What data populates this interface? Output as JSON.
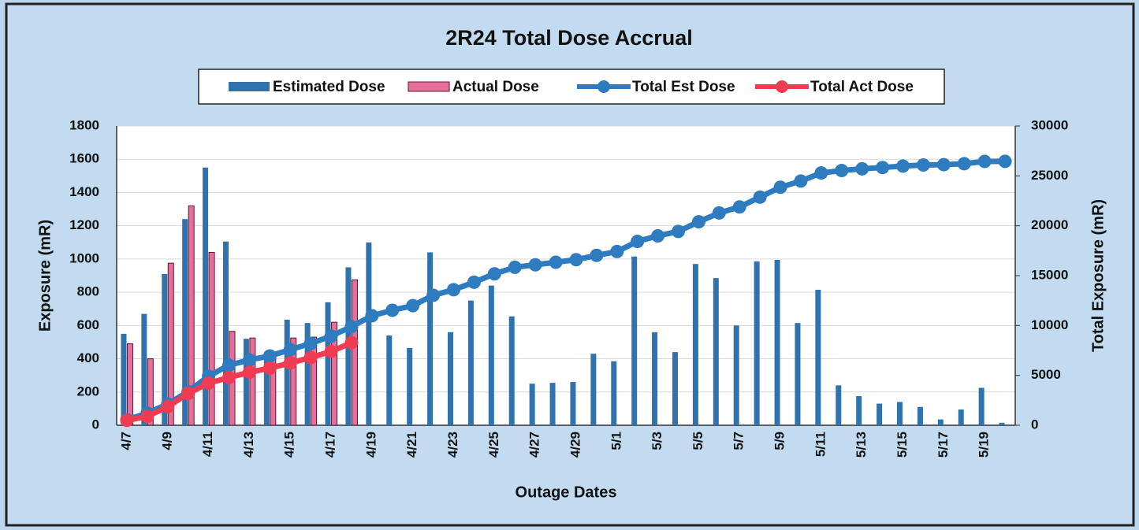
{
  "chart_data": {
    "type": "bar-line",
    "title": "2R24 Total Dose Accrual",
    "x_label": "Outage Dates",
    "y_label": "Exposure (mR)",
    "y2_label": "Total Exposure (mR)",
    "categories": [
      "4/7",
      null,
      "4/9",
      null,
      "4/11",
      null,
      "4/13",
      null,
      "4/15",
      null,
      "4/17",
      null,
      "4/19",
      null,
      "4/21",
      null,
      "4/23",
      null,
      "4/25",
      null,
      "4/27",
      null,
      "4/29",
      null,
      "5/1",
      null,
      "5/3",
      null,
      "5/5",
      null,
      "5/7",
      null,
      "5/9",
      null,
      "5/11",
      null,
      "5/13",
      null,
      "5/15",
      null,
      "5/17",
      null,
      "5/19",
      null
    ],
    "series": [
      {
        "name": "Estimated Dose",
        "kind": "bar",
        "color": "#2f72ad",
        "values": [
          550,
          670,
          910,
          1240,
          1550,
          1105,
          520,
          400,
          635,
          615,
          740,
          950,
          1100,
          540,
          465,
          1040,
          560,
          750,
          840,
          655,
          250,
          255,
          260,
          430,
          385,
          1015,
          560,
          440,
          970,
          885,
          600,
          985,
          995,
          615,
          815,
          240,
          175,
          130,
          140,
          110,
          35,
          95,
          225,
          15
        ]
      },
      {
        "name": "Actual Dose",
        "kind": "bar",
        "color": "#e56f9c",
        "values": [
          490,
          400,
          975,
          1320,
          1040,
          565,
          525,
          410,
          525,
          530,
          620,
          875,
          null,
          null,
          null,
          null,
          null,
          null,
          null,
          null,
          null,
          null,
          null,
          null,
          null,
          null,
          null,
          null,
          null,
          null,
          null,
          null,
          null,
          null,
          null,
          null,
          null,
          null,
          null,
          null,
          null,
          null,
          null,
          null
        ]
      },
      {
        "name": "Total Est Dose",
        "kind": "line",
        "axis": "y2",
        "color": "#2e7bbf",
        "values": [
          550,
          1220,
          2130,
          3370,
          4920,
          6025,
          6545,
          6945,
          7580,
          8195,
          8935,
          9885,
          10985,
          11525,
          11990,
          13030,
          13590,
          14340,
          15180,
          15835,
          16085,
          16340,
          16600,
          17030,
          17415,
          18430,
          18990,
          19430,
          20400,
          21285,
          21885,
          22870,
          23865,
          24480,
          25295,
          25535,
          25710,
          25840,
          25980,
          26090,
          26125,
          26220,
          26445,
          26460
        ]
      },
      {
        "name": "Total Act Dose",
        "kind": "line",
        "axis": "y2",
        "color": "#f03c52",
        "values": [
          490,
          890,
          1865,
          3185,
          4225,
          4790,
          5315,
          5725,
          6250,
          6780,
          7400,
          8275,
          null,
          null,
          null,
          null,
          null,
          null,
          null,
          null,
          null,
          null,
          null,
          null,
          null,
          null,
          null,
          null,
          null,
          null,
          null,
          null,
          null,
          null,
          null,
          null,
          null,
          null,
          null,
          null,
          null,
          null,
          null,
          null
        ]
      }
    ],
    "ylim": [
      0,
      1800
    ],
    "yticks": [
      0,
      200,
      400,
      600,
      800,
      1000,
      1200,
      1400,
      1600,
      1800
    ],
    "y2lim": [
      0,
      30000
    ],
    "y2ticks": [
      0,
      5000,
      10000,
      15000,
      20000,
      25000,
      30000
    ],
    "grid": true,
    "legend": "top"
  }
}
